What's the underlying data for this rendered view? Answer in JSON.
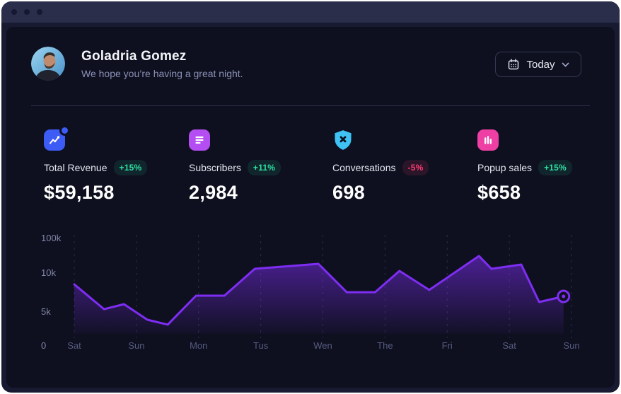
{
  "header": {
    "user_name": "Goladria Gomez",
    "greeting": "We hope you’re having a great night.",
    "date_button": {
      "label": "Today",
      "icon": "calendar-icon",
      "chevron": "chevron-down-icon"
    }
  },
  "stats": [
    {
      "label": "Total Revenue",
      "delta": "+15%",
      "trend": "up",
      "value": "$59,158",
      "icon": "trend-chart-icon",
      "icon_bg": "#3d5bf5",
      "notification_dot": true
    },
    {
      "label": "Subscribers",
      "delta": "+11%",
      "trend": "up",
      "value": "2,984",
      "icon": "document-lines-icon",
      "icon_bg": "#b44df2",
      "notification_dot": false
    },
    {
      "label": "Conversations",
      "delta": "-5%",
      "trend": "down",
      "value": "698",
      "icon": "shield-x-icon",
      "icon_bg": "#3fc2f4",
      "notification_dot": false
    },
    {
      "label": "Popup sales",
      "delta": "+15%",
      "trend": "up",
      "value": "$658",
      "icon": "bar-chart-icon",
      "icon_bg": "#ee3fa4",
      "notification_dot": false
    }
  ],
  "badge_colors": {
    "up_text": "#2ee0a2",
    "up_bg": "rgba(46,224,162,0.10)",
    "down_text": "#fb3b72",
    "down_bg": "rgba(251,59,114,0.12)"
  },
  "chart_data": {
    "type": "area",
    "x_labels": [
      "Sat",
      "Sun",
      "Mon",
      "Tus",
      "Wen",
      "The",
      "Fri",
      "Sat",
      "Sun"
    ],
    "y_tick_labels": [
      "100k",
      "10k",
      "5k",
      "0"
    ],
    "y_tick_fractions": [
      0.056,
      0.401,
      0.789,
      1.127
    ],
    "axis_note": "non-linear y axis: ticks 0, 5k, 10k, 100k",
    "series": [
      {
        "name": "value",
        "unit": "k",
        "values_by_day": [
          8.6,
          4.3,
          7.1,
          10.5,
          11.2,
          7.6,
          9.4,
          11,
          7
        ]
      }
    ],
    "polyline_norm": [
      [
        0.0,
        0.507
      ],
      [
        0.06,
        0.754
      ],
      [
        0.1,
        0.704
      ],
      [
        0.147,
        0.859
      ],
      [
        0.188,
        0.908
      ],
      [
        0.245,
        0.62
      ],
      [
        0.302,
        0.62
      ],
      [
        0.363,
        0.352
      ],
      [
        0.491,
        0.303
      ],
      [
        0.548,
        0.585
      ],
      [
        0.605,
        0.585
      ],
      [
        0.654,
        0.373
      ],
      [
        0.714,
        0.563
      ],
      [
        0.814,
        0.225
      ],
      [
        0.839,
        0.352
      ],
      [
        0.899,
        0.31
      ],
      [
        0.935,
        0.683
      ],
      [
        0.984,
        0.627
      ]
    ],
    "end_marker": true,
    "grid": "vertical-dashed",
    "legend": "none",
    "colors": {
      "line": "#7e2df2",
      "fill_top": "rgba(126,45,242,0.55)",
      "fill_bottom": "rgba(126,45,242,0.04)",
      "grid": "#2a2e4a",
      "x_label": "#565b80",
      "y_label": "#8186a8"
    }
  }
}
